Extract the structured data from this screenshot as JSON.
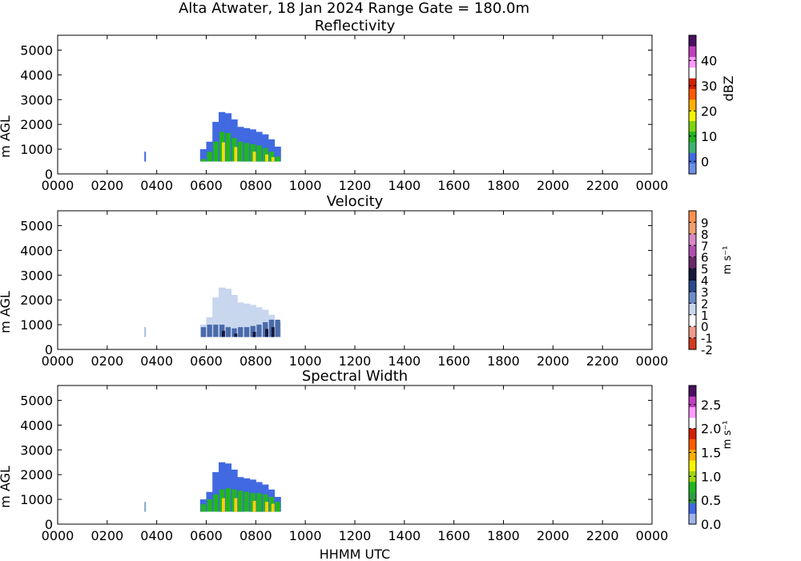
{
  "figure": {
    "title": "Alta Atwater, 18 Jan 2024 Range Gate = 180.0m",
    "xlabel": "HHMM UTC"
  },
  "chart_data": [
    {
      "type": "heatmap",
      "title": "Reflectivity",
      "ylabel": "m AGL",
      "colorbar_label": "dBZ",
      "colorbar_label_vertical": true,
      "x_tick_labels": [
        "0000",
        "0200",
        "0400",
        "0600",
        "0800",
        "1000",
        "1200",
        "1400",
        "1600",
        "1800",
        "2000",
        "2200",
        "0000"
      ],
      "xlim_hours": [
        0,
        24
      ],
      "ylim": [
        0,
        5600
      ],
      "y_ticks": [
        0,
        1000,
        2000,
        3000,
        4000,
        5000
      ],
      "colorbar": {
        "range": [
          -5,
          50
        ],
        "ticks": [
          0,
          10,
          20,
          30,
          40
        ],
        "tick_labels": [
          "0",
          "10",
          "20",
          "30",
          "40"
        ],
        "colors": [
          "#6d8fe4",
          "#4169e1",
          "#3cb371",
          "#22b522",
          "#7dd40f",
          "#f5f500",
          "#ffb000",
          "#ff5a00",
          "#d22000",
          "#ffffff",
          "#ff99ff",
          "#c040c0",
          "#4b1060"
        ]
      },
      "echo": {
        "times_hhmm": [
          "0545",
          "0600",
          "0615",
          "0630",
          "0645",
          "0700",
          "0715",
          "0730",
          "0745",
          "0800",
          "0815",
          "0830",
          "0845",
          "0900"
        ],
        "top_m": [
          1000,
          1300,
          2100,
          2500,
          2450,
          2200,
          1900,
          1850,
          1800,
          1700,
          1600,
          1400,
          1100
        ],
        "top_color": "#4169e1",
        "core_top_m": [
          600,
          900,
          1300,
          1700,
          1650,
          1450,
          1300,
          1250,
          1200,
          1150,
          1050,
          900,
          700
        ],
        "core_color": "#22b522",
        "hot_color": "#f0e000",
        "isolated_echo": {
          "time_hhmm": "0330",
          "top_m": 900,
          "color": "#4169e1"
        }
      }
    },
    {
      "type": "heatmap",
      "title": "Velocity",
      "ylabel": "m AGL",
      "colorbar_label": "m s⁻¹",
      "colorbar_label_vertical": false,
      "x_tick_labels": [
        "0000",
        "0200",
        "0400",
        "0600",
        "0800",
        "1000",
        "1200",
        "1400",
        "1600",
        "1800",
        "2000",
        "2200",
        "0000"
      ],
      "xlim_hours": [
        0,
        24
      ],
      "ylim": [
        0,
        5600
      ],
      "y_ticks": [
        0,
        1000,
        2000,
        3000,
        4000,
        5000
      ],
      "colorbar": {
        "range": [
          -2,
          10
        ],
        "ticks": [
          -2,
          -1,
          0,
          1,
          2,
          3,
          4,
          5,
          6,
          7,
          8,
          9
        ],
        "tick_labels": [
          "-2",
          "-1",
          "0",
          "1",
          "2",
          "3",
          "4",
          "5",
          "6",
          "7",
          "8",
          "9"
        ],
        "colors": [
          "#d43a20",
          "#f09a8a",
          "#ffffff",
          "#c8d6ee",
          "#6a8cc8",
          "#2a4a8a",
          "#14183c",
          "#6a2a6a",
          "#b050b0",
          "#d887c8",
          "#f0a070",
          "#ff9050"
        ]
      },
      "echo": {
        "times_hhmm": [
          "0545",
          "0600",
          "0615",
          "0630",
          "0645",
          "0700",
          "0715",
          "0730",
          "0745",
          "0800",
          "0815",
          "0830",
          "0845",
          "0900"
        ],
        "top_m": [
          1000,
          1300,
          2100,
          2500,
          2450,
          2200,
          1900,
          1850,
          1800,
          1700,
          1600,
          1400,
          1100
        ],
        "top_color": "#c8d6ee",
        "core_top_m": [
          900,
          1000,
          1000,
          1000,
          900,
          850,
          900,
          900,
          950,
          1000,
          1100,
          1200,
          1200
        ],
        "core_color": "#4a6aaa",
        "hot_color": "#14183c",
        "isolated_echo": {
          "time_hhmm": "0330",
          "top_m": 900,
          "color": "#a8bce0"
        }
      }
    },
    {
      "type": "heatmap",
      "title": "Spectral Width",
      "ylabel": "m AGL",
      "colorbar_label": "m s⁻¹",
      "colorbar_label_vertical": false,
      "x_tick_labels": [
        "0000",
        "0200",
        "0400",
        "0600",
        "0800",
        "1000",
        "1200",
        "1400",
        "1600",
        "1800",
        "2000",
        "2200",
        "0000"
      ],
      "xlim_hours": [
        0,
        24
      ],
      "ylim": [
        0,
        5600
      ],
      "y_ticks": [
        0,
        1000,
        2000,
        3000,
        4000,
        5000
      ],
      "colorbar": {
        "range": [
          0,
          2.9
        ],
        "ticks": [
          0.0,
          0.5,
          1.0,
          1.5,
          2.0,
          2.5
        ],
        "tick_labels": [
          "0.0",
          "0.5",
          "1.0",
          "1.5",
          "2.0",
          "2.5"
        ],
        "colors": [
          "#9fb4ea",
          "#4169e1",
          "#2e9e40",
          "#22b522",
          "#a0d810",
          "#f5f500",
          "#ffb000",
          "#ff5a00",
          "#d22000",
          "#ffffff",
          "#ff99ff",
          "#c040c0",
          "#4b1060"
        ]
      },
      "echo": {
        "times_hhmm": [
          "0545",
          "0600",
          "0615",
          "0630",
          "0645",
          "0700",
          "0715",
          "0730",
          "0745",
          "0800",
          "0815",
          "0830",
          "0845",
          "0900"
        ],
        "top_m": [
          1000,
          1300,
          2100,
          2500,
          2450,
          2200,
          1900,
          1850,
          1800,
          1700,
          1600,
          1400,
          1100
        ],
        "top_color": "#4169e1",
        "core_top_m": [
          800,
          1000,
          1200,
          1400,
          1450,
          1400,
          1350,
          1300,
          1250,
          1250,
          1200,
          1100,
          900
        ],
        "core_color": "#22b522",
        "hot_color": "#ffd000",
        "isolated_echo": {
          "time_hhmm": "0330",
          "top_m": 900,
          "color": "#7fa8d0"
        }
      }
    }
  ]
}
